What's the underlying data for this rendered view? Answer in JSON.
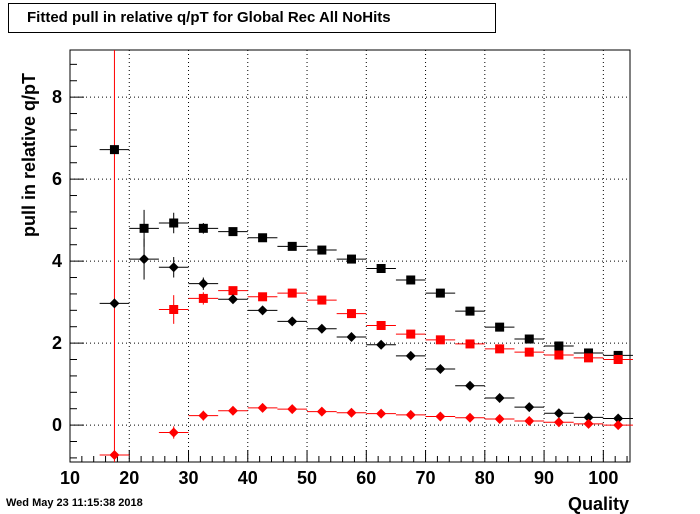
{
  "chart_data": {
    "type": "scatter",
    "title": "Fitted pull in relative q/pT for Global Rec All NoHits",
    "xlabel": "Quality",
    "ylabel": "pull in relative q/pT",
    "xlim": [
      10,
      104.5
    ],
    "ylim": [
      -0.9,
      9.15
    ],
    "xticks": [
      10,
      20,
      30,
      40,
      50,
      60,
      70,
      80,
      90,
      100
    ],
    "yticks": [
      0,
      2,
      4,
      6,
      8
    ],
    "grid": true,
    "vertical_line_x": 17.5,
    "series": [
      {
        "marker": "square",
        "color": "#000000",
        "points": [
          {
            "x": 17.5,
            "y": 6.72,
            "yerr": 0.05
          },
          {
            "x": 22.5,
            "y": 4.8,
            "yerr": 0.45
          },
          {
            "x": 27.5,
            "y": 4.93,
            "yerr": 0.25
          },
          {
            "x": 32.5,
            "y": 4.8,
            "yerr": 0.13
          },
          {
            "x": 37.5,
            "y": 4.72,
            "yerr": 0.08
          },
          {
            "x": 42.5,
            "y": 4.57,
            "yerr": 0.06
          },
          {
            "x": 47.5,
            "y": 4.36,
            "yerr": 0.05
          },
          {
            "x": 52.5,
            "y": 4.27,
            "yerr": 0.05
          },
          {
            "x": 57.5,
            "y": 4.05,
            "yerr": 0.05
          },
          {
            "x": 62.5,
            "y": 3.82,
            "yerr": 0.05
          },
          {
            "x": 67.5,
            "y": 3.54,
            "yerr": 0.05
          },
          {
            "x": 72.5,
            "y": 3.22,
            "yerr": 0.05
          },
          {
            "x": 77.5,
            "y": 2.78,
            "yerr": 0.04
          },
          {
            "x": 82.5,
            "y": 2.39,
            "yerr": 0.04
          },
          {
            "x": 87.5,
            "y": 2.1,
            "yerr": 0.04
          },
          {
            "x": 92.5,
            "y": 1.93,
            "yerr": 0.04
          },
          {
            "x": 97.5,
            "y": 1.76,
            "yerr": 0.04
          },
          {
            "x": 102.5,
            "y": 1.7,
            "yerr": 0.04
          }
        ]
      },
      {
        "marker": "square",
        "color": "#ff0000",
        "points": [
          {
            "x": 27.5,
            "y": 2.82,
            "yerr": 0.35
          },
          {
            "x": 32.5,
            "y": 3.09,
            "yerr": 0.15
          },
          {
            "x": 37.5,
            "y": 3.28,
            "yerr": 0.1
          },
          {
            "x": 42.5,
            "y": 3.13,
            "yerr": 0.08
          },
          {
            "x": 47.5,
            "y": 3.22,
            "yerr": 0.06
          },
          {
            "x": 52.5,
            "y": 3.05,
            "yerr": 0.05
          },
          {
            "x": 57.5,
            "y": 2.72,
            "yerr": 0.05
          },
          {
            "x": 62.5,
            "y": 2.43,
            "yerr": 0.05
          },
          {
            "x": 67.5,
            "y": 2.22,
            "yerr": 0.04
          },
          {
            "x": 72.5,
            "y": 2.08,
            "yerr": 0.04
          },
          {
            "x": 77.5,
            "y": 1.98,
            "yerr": 0.04
          },
          {
            "x": 82.5,
            "y": 1.86,
            "yerr": 0.04
          },
          {
            "x": 87.5,
            "y": 1.78,
            "yerr": 0.04
          },
          {
            "x": 92.5,
            "y": 1.71,
            "yerr": 0.04
          },
          {
            "x": 97.5,
            "y": 1.64,
            "yerr": 0.04
          },
          {
            "x": 102.5,
            "y": 1.6,
            "yerr": 0.04
          }
        ]
      },
      {
        "marker": "diamond",
        "color": "#000000",
        "points": [
          {
            "x": 17.5,
            "y": 2.97,
            "yerr": 0.05
          },
          {
            "x": 22.5,
            "y": 4.05,
            "yerr": 0.5
          },
          {
            "x": 27.5,
            "y": 3.85,
            "yerr": 0.25
          },
          {
            "x": 32.5,
            "y": 3.45,
            "yerr": 0.15
          },
          {
            "x": 37.5,
            "y": 3.07,
            "yerr": 0.1
          },
          {
            "x": 42.5,
            "y": 2.8,
            "yerr": 0.06
          },
          {
            "x": 47.5,
            "y": 2.53,
            "yerr": 0.05
          },
          {
            "x": 52.5,
            "y": 2.35,
            "yerr": 0.05
          },
          {
            "x": 57.5,
            "y": 2.15,
            "yerr": 0.05
          },
          {
            "x": 62.5,
            "y": 1.96,
            "yerr": 0.04
          },
          {
            "x": 67.5,
            "y": 1.69,
            "yerr": 0.04
          },
          {
            "x": 72.5,
            "y": 1.37,
            "yerr": 0.04
          },
          {
            "x": 77.5,
            "y": 0.96,
            "yerr": 0.04
          },
          {
            "x": 82.5,
            "y": 0.66,
            "yerr": 0.04
          },
          {
            "x": 87.5,
            "y": 0.44,
            "yerr": 0.04
          },
          {
            "x": 92.5,
            "y": 0.29,
            "yerr": 0.04
          },
          {
            "x": 97.5,
            "y": 0.19,
            "yerr": 0.04
          },
          {
            "x": 102.5,
            "y": 0.16,
            "yerr": 0.04
          }
        ]
      },
      {
        "marker": "diamond",
        "color": "#ff0000",
        "points": [
          {
            "x": 17.5,
            "y": -0.73,
            "yerr": 0.05
          },
          {
            "x": 27.5,
            "y": -0.18,
            "yerr": 0.15
          },
          {
            "x": 32.5,
            "y": 0.23,
            "yerr": 0.12
          },
          {
            "x": 37.5,
            "y": 0.35,
            "yerr": 0.08
          },
          {
            "x": 42.5,
            "y": 0.42,
            "yerr": 0.06
          },
          {
            "x": 47.5,
            "y": 0.39,
            "yerr": 0.05
          },
          {
            "x": 52.5,
            "y": 0.33,
            "yerr": 0.05
          },
          {
            "x": 57.5,
            "y": 0.3,
            "yerr": 0.04
          },
          {
            "x": 62.5,
            "y": 0.28,
            "yerr": 0.04
          },
          {
            "x": 67.5,
            "y": 0.25,
            "yerr": 0.04
          },
          {
            "x": 72.5,
            "y": 0.21,
            "yerr": 0.04
          },
          {
            "x": 77.5,
            "y": 0.18,
            "yerr": 0.04
          },
          {
            "x": 82.5,
            "y": 0.15,
            "yerr": 0.04
          },
          {
            "x": 87.5,
            "y": 0.1,
            "yerr": 0.04
          },
          {
            "x": 92.5,
            "y": 0.07,
            "yerr": 0.04
          },
          {
            "x": 97.5,
            "y": 0.03,
            "yerr": 0.04
          },
          {
            "x": 102.5,
            "y": 0.0,
            "yerr": 0.04
          }
        ]
      }
    ]
  },
  "footer": {
    "timestamp": "Wed May 23 11:15:38 2018"
  }
}
